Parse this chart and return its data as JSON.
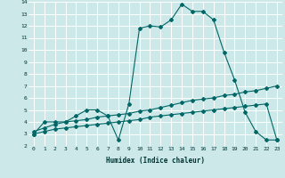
{
  "xlabel": "Humidex (Indice chaleur)",
  "bg_color": "#cce8e8",
  "grid_color": "#ffffff",
  "line_color": "#006666",
  "xlim": [
    -0.5,
    23.5
  ],
  "ylim": [
    2,
    14
  ],
  "xticks": [
    0,
    1,
    2,
    3,
    4,
    5,
    6,
    7,
    8,
    9,
    10,
    11,
    12,
    13,
    14,
    15,
    16,
    17,
    18,
    19,
    20,
    21,
    22,
    23
  ],
  "yticks": [
    2,
    3,
    4,
    5,
    6,
    7,
    8,
    9,
    10,
    11,
    12,
    13,
    14
  ],
  "line1_x": [
    0,
    1,
    2,
    3,
    4,
    5,
    6,
    7,
    8,
    9,
    10,
    11,
    12,
    13,
    14,
    15,
    16,
    17,
    18,
    19,
    20,
    21,
    22,
    23
  ],
  "line1_y": [
    3.0,
    4.0,
    4.0,
    4.0,
    4.5,
    5.0,
    5.0,
    4.5,
    2.5,
    5.5,
    11.8,
    12.0,
    11.9,
    12.5,
    13.8,
    13.2,
    13.2,
    12.5,
    9.8,
    7.5,
    4.8,
    3.2,
    2.5,
    2.5
  ],
  "line2_x": [
    0,
    1,
    2,
    3,
    4,
    5,
    6,
    7,
    8,
    9,
    10,
    11,
    12,
    13,
    14,
    15,
    16,
    17,
    18,
    19,
    20,
    21,
    22,
    23
  ],
  "line2_y": [
    3.0,
    3.2,
    3.4,
    3.5,
    3.6,
    3.7,
    3.8,
    3.9,
    4.0,
    4.1,
    4.2,
    4.4,
    4.5,
    4.6,
    4.7,
    4.8,
    4.9,
    5.0,
    5.1,
    5.2,
    5.3,
    5.4,
    5.5,
    2.5
  ],
  "line3_x": [
    0,
    1,
    2,
    3,
    4,
    5,
    6,
    7,
    8,
    9,
    10,
    11,
    12,
    13,
    14,
    15,
    16,
    17,
    18,
    19,
    20,
    21,
    22,
    23
  ],
  "line3_y": [
    3.2,
    3.5,
    3.8,
    4.0,
    4.1,
    4.2,
    4.4,
    4.5,
    4.6,
    4.7,
    4.9,
    5.0,
    5.2,
    5.4,
    5.6,
    5.8,
    5.9,
    6.0,
    6.2,
    6.3,
    6.5,
    6.6,
    6.8,
    7.0
  ]
}
